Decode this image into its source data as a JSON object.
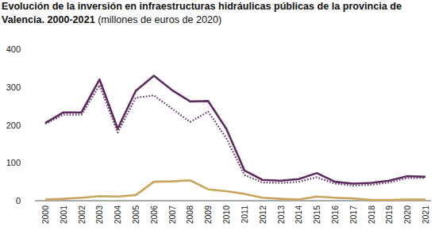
{
  "chart_data": {
    "type": "line",
    "title": "Evolución de la inversión en infraestructuras hidráulicas públicas de la provincia de Valencia. 2000-2021",
    "subtitle": "(millones de euros de 2020)",
    "categories": [
      "2000",
      "2001",
      "2002",
      "2003",
      "2004",
      "2005",
      "2006",
      "2007",
      "2008",
      "2009",
      "2010",
      "2011",
      "2012",
      "2013",
      "2014",
      "2015",
      "2016",
      "2017",
      "2018",
      "2019",
      "2020",
      "2021"
    ],
    "series": [
      {
        "color": "#5e2a61",
        "line_style": "solid",
        "values": [
          205,
          233,
          233,
          320,
          190,
          290,
          330,
          292,
          262,
          263,
          190,
          80,
          55,
          53,
          57,
          73,
          50,
          45,
          47,
          53,
          65,
          63
        ]
      },
      {
        "color": "#5e2a61",
        "line_style": "dotted",
        "values": [
          203,
          227,
          227,
          305,
          180,
          272,
          278,
          243,
          208,
          235,
          165,
          68,
          48,
          47,
          50,
          62,
          45,
          40,
          42,
          48,
          60,
          60
        ]
      },
      {
        "color": "#c8a45c",
        "line_style": "solid",
        "values": [
          3,
          5,
          8,
          12,
          11,
          15,
          50,
          51,
          54,
          30,
          25,
          18,
          8,
          5,
          3,
          11,
          8,
          6,
          2,
          2,
          3,
          3
        ]
      }
    ],
    "ylim": [
      0,
      400
    ],
    "yticks": [
      0,
      100,
      200,
      300,
      400
    ],
    "grid": false
  }
}
